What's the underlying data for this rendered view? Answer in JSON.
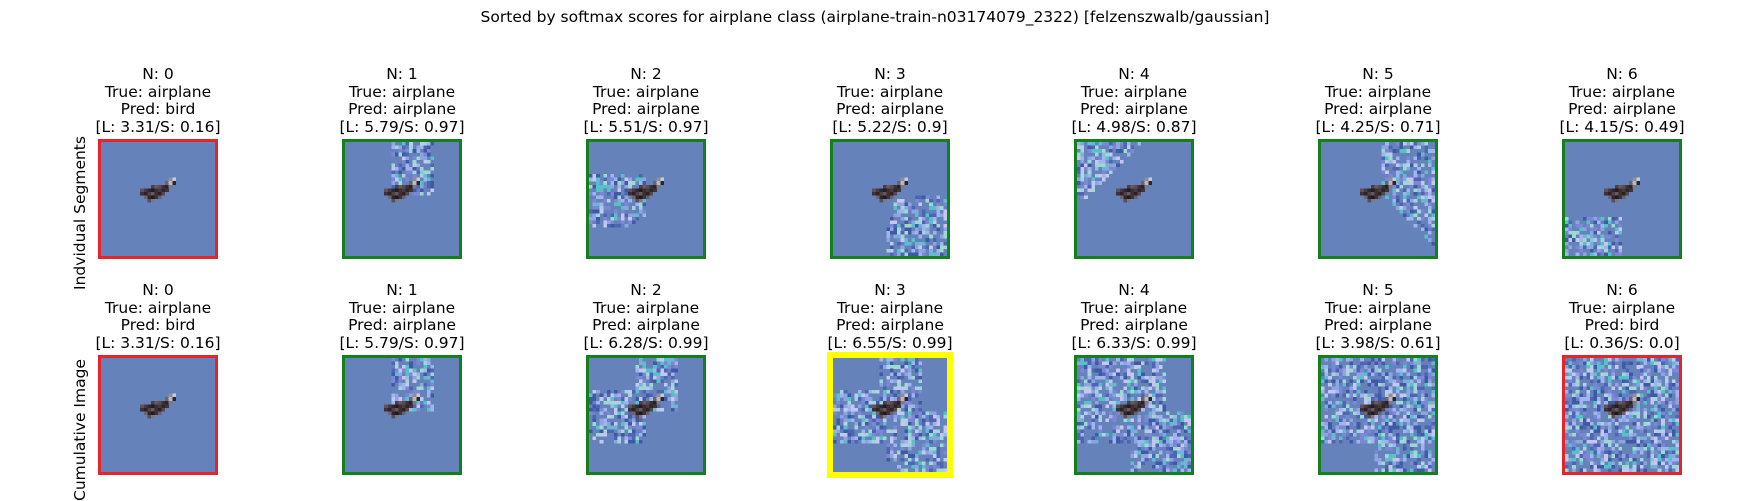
{
  "title": "Sorted by softmax scores for airplane class (airplane-train-n03174079_2322) [felzenszwalb/gaussian]",
  "colors": {
    "background_sky": "#6682bb",
    "border_wrong": "#e8242b",
    "border_right": "#13801b",
    "border_best": "#ffff00",
    "noise": [
      "#8ea6e0",
      "#4e65b6",
      "#9fd8d0",
      "#7e86d8",
      "#58c0c8",
      "#a0b4f0",
      "#3e5aa4",
      "#c4c8f0"
    ]
  },
  "chart_data": {
    "type": "image-grid",
    "title": "Sorted by softmax scores for airplane class (airplane-train-n03174079_2322) [felzenszwalb/gaussian]",
    "rows": [
      {
        "label": "Indvidual Segments",
        "panels": [
          {
            "n": "N: 0",
            "true": "True: airplane",
            "pred": "Pred: bird",
            "scores": "[L: 3.31/S: 0.16]",
            "logit": 3.31,
            "softmax": 0.16,
            "border": "wrong",
            "noise_region": "none"
          },
          {
            "n": "N: 1",
            "true": "True: airplane",
            "pred": "Pred: airplane",
            "scores": "[L: 5.79/S: 0.97]",
            "logit": 5.79,
            "softmax": 0.97,
            "border": "right",
            "noise_region": "top-center"
          },
          {
            "n": "N: 2",
            "true": "True: airplane",
            "pred": "Pred: airplane",
            "scores": "[L: 5.51/S: 0.97]",
            "logit": 5.51,
            "softmax": 0.97,
            "border": "right",
            "noise_region": "left-center"
          },
          {
            "n": "N: 3",
            "true": "True: airplane",
            "pred": "Pred: airplane",
            "scores": "[L: 5.22/S: 0.9]",
            "logit": 5.22,
            "softmax": 0.9,
            "border": "right",
            "noise_region": "bottom-right"
          },
          {
            "n": "N: 4",
            "true": "True: airplane",
            "pred": "Pred: airplane",
            "scores": "[L: 4.98/S: 0.87]",
            "logit": 4.98,
            "softmax": 0.87,
            "border": "right",
            "noise_region": "top-left"
          },
          {
            "n": "N: 5",
            "true": "True: airplane",
            "pred": "Pred: airplane",
            "scores": "[L: 4.25/S: 0.71]",
            "logit": 4.25,
            "softmax": 0.71,
            "border": "right",
            "noise_region": "right-diagonal"
          },
          {
            "n": "N: 6",
            "true": "True: airplane",
            "pred": "Pred: airplane",
            "scores": "[L: 4.15/S: 0.49]",
            "logit": 4.15,
            "softmax": 0.49,
            "border": "right",
            "noise_region": "bottom-left"
          }
        ]
      },
      {
        "label": "Cumulative Image",
        "panels": [
          {
            "n": "N: 0",
            "true": "True: airplane",
            "pred": "Pred: bird",
            "scores": "[L: 3.31/S: 0.16]",
            "logit": 3.31,
            "softmax": 0.16,
            "border": "wrong",
            "noise_region": "none"
          },
          {
            "n": "N: 1",
            "true": "True: airplane",
            "pred": "Pred: airplane",
            "scores": "[L: 5.79/S: 0.97]",
            "logit": 5.79,
            "softmax": 0.97,
            "border": "right",
            "noise_region": "cumulative-1"
          },
          {
            "n": "N: 2",
            "true": "True: airplane",
            "pred": "Pred: airplane",
            "scores": "[L: 6.28/S: 0.99]",
            "logit": 6.28,
            "softmax": 0.99,
            "border": "right",
            "noise_region": "cumulative-2"
          },
          {
            "n": "N: 3",
            "true": "True: airplane",
            "pred": "Pred: airplane",
            "scores": "[L: 6.55/S: 0.99]",
            "logit": 6.55,
            "softmax": 0.99,
            "border": "best",
            "noise_region": "cumulative-3"
          },
          {
            "n": "N: 4",
            "true": "True: airplane",
            "pred": "Pred: airplane",
            "scores": "[L: 6.33/S: 0.99]",
            "logit": 6.33,
            "softmax": 0.99,
            "border": "right",
            "noise_region": "cumulative-4"
          },
          {
            "n": "N: 5",
            "true": "True: airplane",
            "pred": "Pred: airplane",
            "scores": "[L: 3.98/S: 0.61]",
            "logit": 3.98,
            "softmax": 0.61,
            "border": "right",
            "noise_region": "cumulative-5"
          },
          {
            "n": "N: 6",
            "true": "True: airplane",
            "pred": "Pred: bird",
            "scores": "[L: 0.36/S: 0.0]",
            "logit": 0.36,
            "softmax": 0.0,
            "border": "wrong",
            "noise_region": "full"
          }
        ]
      }
    ]
  }
}
